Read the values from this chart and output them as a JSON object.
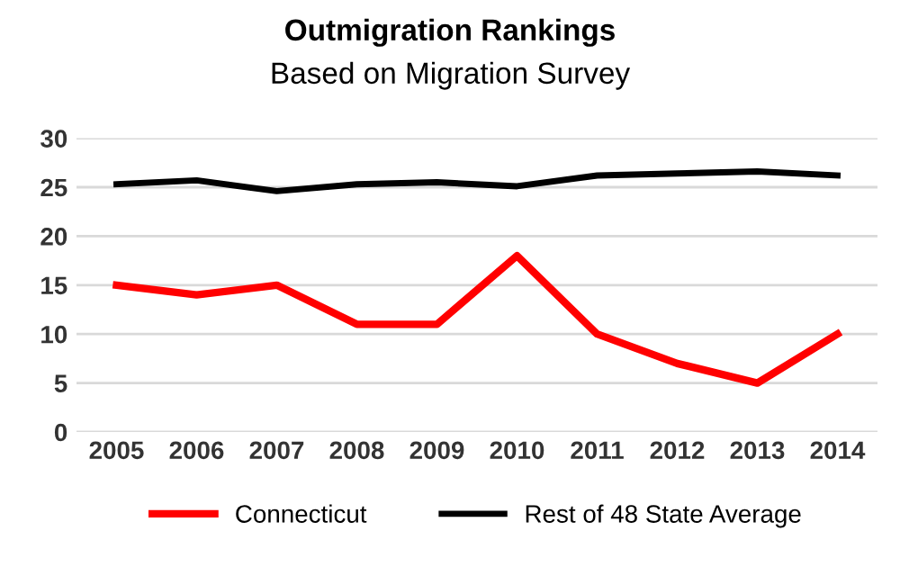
{
  "chart_data": {
    "type": "line",
    "title": "Outmigration Rankings",
    "subtitle": "Based on Migration Survey",
    "categories": [
      "2005",
      "2006",
      "2007",
      "2008",
      "2009",
      "2010",
      "2011",
      "2012",
      "2013",
      "2014"
    ],
    "series": [
      {
        "name": "Connecticut",
        "color": "#ff0000",
        "values": [
          15,
          14,
          15,
          11,
          11,
          18,
          10,
          7,
          5,
          10
        ]
      },
      {
        "name": "Rest of 48 State Average",
        "color": "#000000",
        "values": [
          25.3,
          25.7,
          24.6,
          25.3,
          25.5,
          25.1,
          26.2,
          26.4,
          26.6,
          26.2
        ]
      }
    ],
    "ylim": [
      0,
      30
    ],
    "yticks": [
      0,
      5,
      10,
      15,
      20,
      25,
      30
    ],
    "grid": "y",
    "legend": "bottom",
    "line_style": "solid"
  }
}
